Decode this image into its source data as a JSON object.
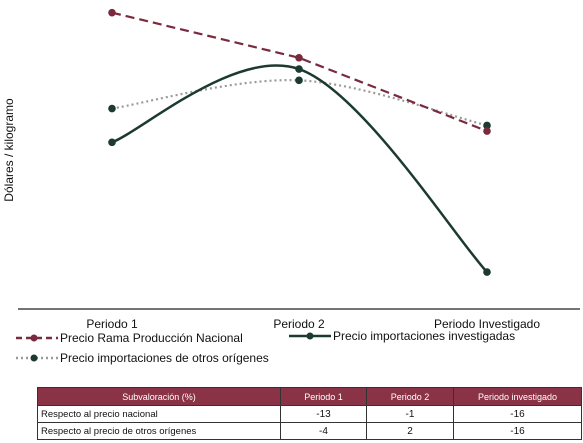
{
  "chart_data": {
    "type": "line",
    "title": "",
    "ylabel": "Dólares / kilogramo",
    "xlabel": "",
    "categories": [
      "Periodo 1",
      "Periodo 2",
      "Periodo Investigado"
    ],
    "ylim": [
      0,
      100
    ],
    "y_axis_visible": false,
    "series": [
      {
        "name": "Precio Rama Producción Nacional",
        "values": [
          98,
          82,
          56
        ],
        "color": "#7a2a3e",
        "style": "dashed"
      },
      {
        "name": "Precio importaciones investigadas",
        "values": [
          52,
          78,
          6
        ],
        "color": "#1c3a2f",
        "style": "solid"
      },
      {
        "name": "Precio importaciones de otros orígenes",
        "values": [
          64,
          74,
          58
        ],
        "color": "#9a9a9a",
        "style": "dotted"
      }
    ]
  },
  "table": {
    "headers": [
      "Subvaloración (%)",
      "Periodo 1",
      "Periodo 2",
      "Periodo investigado"
    ],
    "rows": [
      {
        "label": "Respecto al precio nacional",
        "values": [
          "-13",
          "-1",
          "-16"
        ]
      },
      {
        "label": "Respecto al precio de otros orígenes",
        "values": [
          "-4",
          "2",
          "-16"
        ]
      }
    ]
  }
}
